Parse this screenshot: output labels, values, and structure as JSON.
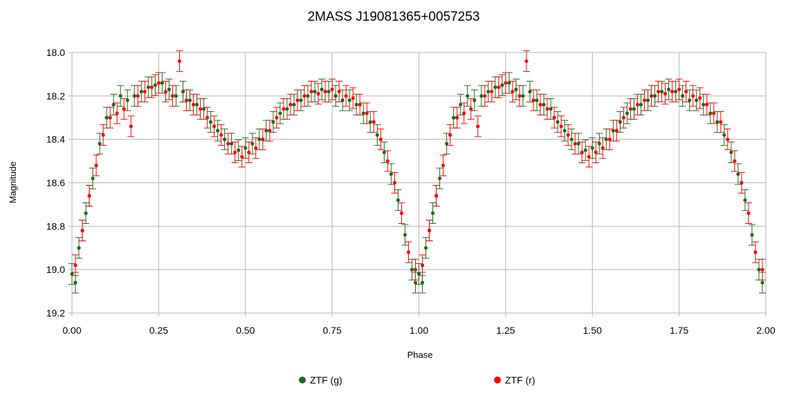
{
  "chart_data": {
    "type": "scatter",
    "title": "2MASS J19081365+0057253",
    "xlabel": "Phase",
    "ylabel": "Magnitude",
    "xlim": [
      0.0,
      2.0
    ],
    "ylim": [
      18.0,
      19.2
    ],
    "y_inverted": true,
    "x_ticks": [
      0.0,
      0.25,
      0.5,
      0.75,
      1.0,
      1.25,
      1.5,
      1.75,
      2.0
    ],
    "x_tick_labels": [
      "0.00",
      "0.25",
      "0.50",
      "0.75",
      "1.00",
      "1.25",
      "1.50",
      "1.75",
      "2.00"
    ],
    "y_ticks": [
      18.0,
      18.2,
      18.4,
      18.6,
      18.8,
      19.0,
      19.2
    ],
    "y_tick_labels": [
      "18.0",
      "18.2",
      "18.4",
      "18.6",
      "18.8",
      "19.0",
      "19.2"
    ],
    "grid": true,
    "legend_position": "bottom-center",
    "error_bars": true,
    "phase_repeat_period": 1.0,
    "series": [
      {
        "name": "ZTF (g)",
        "color": "#1a6b1a",
        "x": [
          0.0,
          0.01,
          0.02,
          0.03,
          0.04,
          0.05,
          0.06,
          0.08,
          0.1,
          0.12,
          0.14,
          0.16,
          0.18,
          0.2,
          0.22,
          0.24,
          0.26,
          0.28,
          0.3,
          0.32,
          0.34,
          0.36,
          0.38,
          0.4,
          0.42,
          0.44,
          0.46,
          0.48,
          0.5,
          0.52,
          0.54,
          0.56,
          0.58,
          0.6,
          0.62,
          0.64,
          0.66,
          0.68,
          0.7,
          0.72,
          0.74,
          0.76,
          0.78,
          0.8,
          0.82,
          0.84,
          0.86,
          0.88,
          0.9,
          0.92,
          0.94,
          0.96,
          0.98,
          0.99
        ],
        "y": [
          19.02,
          19.06,
          18.9,
          18.82,
          18.74,
          18.66,
          18.58,
          18.42,
          18.3,
          18.24,
          18.2,
          18.22,
          18.2,
          18.18,
          18.16,
          18.15,
          18.14,
          18.17,
          18.2,
          18.18,
          18.22,
          18.24,
          18.26,
          18.32,
          18.36,
          18.4,
          18.42,
          18.45,
          18.44,
          18.42,
          18.4,
          18.36,
          18.32,
          18.28,
          18.26,
          18.24,
          18.22,
          18.2,
          18.18,
          18.17,
          18.18,
          18.2,
          18.22,
          18.22,
          18.24,
          18.28,
          18.32,
          18.38,
          18.46,
          18.56,
          18.68,
          18.84,
          19.0,
          19.06
        ]
      },
      {
        "name": "ZTF (r)",
        "color": "#ff0000",
        "x": [
          0.01,
          0.03,
          0.05,
          0.07,
          0.09,
          0.11,
          0.13,
          0.15,
          0.17,
          0.19,
          0.21,
          0.23,
          0.25,
          0.27,
          0.29,
          0.31,
          0.33,
          0.35,
          0.37,
          0.39,
          0.41,
          0.43,
          0.45,
          0.47,
          0.49,
          0.51,
          0.53,
          0.55,
          0.57,
          0.59,
          0.61,
          0.63,
          0.65,
          0.67,
          0.69,
          0.71,
          0.73,
          0.75,
          0.77,
          0.79,
          0.81,
          0.83,
          0.85,
          0.87,
          0.89,
          0.91,
          0.93,
          0.95,
          0.97,
          0.99
        ],
        "y": [
          18.98,
          18.82,
          18.66,
          18.52,
          18.38,
          18.3,
          18.28,
          18.26,
          18.34,
          18.2,
          18.18,
          18.16,
          18.14,
          18.18,
          18.2,
          18.04,
          18.22,
          18.24,
          18.26,
          18.3,
          18.34,
          18.38,
          18.42,
          18.46,
          18.48,
          18.46,
          18.44,
          18.4,
          18.36,
          18.3,
          18.26,
          18.24,
          18.22,
          18.2,
          18.18,
          18.19,
          18.18,
          18.17,
          18.18,
          18.2,
          18.21,
          18.24,
          18.28,
          18.32,
          18.4,
          18.5,
          18.6,
          18.74,
          18.92,
          19.0
        ]
      }
    ]
  }
}
